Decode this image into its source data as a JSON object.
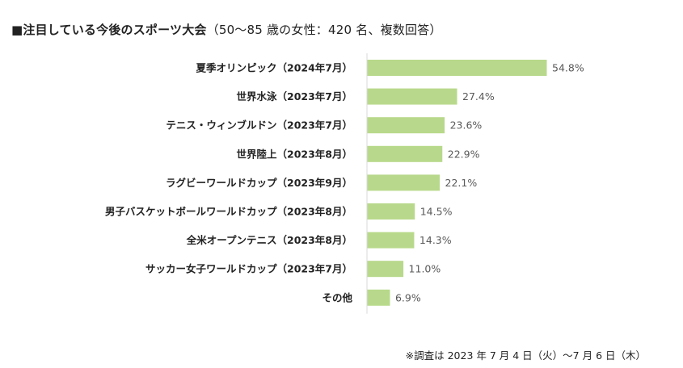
{
  "title": {
    "main": "■注目している今後のスポーツ大会",
    "sub": "（50～85 歳の女性：420 名、複数回答）"
  },
  "footnote": "※調査は 2023 年 7 月 4 日（火）～7 月 6 日（木）",
  "colors": {
    "bar": "#b8d98b",
    "axis": "#d9d9d9",
    "value_text": "#595959"
  },
  "chart_data": {
    "type": "bar",
    "orientation": "horizontal",
    "title": "注目している今後のスポーツ大会",
    "subtitle": "（50～85 歳の女性：420 名、複数回答）",
    "xlabel": "",
    "ylabel": "",
    "unit": "%",
    "xlim": [
      0,
      60
    ],
    "grid": false,
    "legend": "none",
    "categories": [
      "夏季オリンピック（2024年7月）",
      "世界水泳（2023年7月）",
      "テニス・ウィンブルドン（2023年7月）",
      "世界陸上（2023年8月）",
      "ラグビーワールドカップ（2023年9月）",
      "男子バスケットボールワールドカップ（2023年8月）",
      "全米オープンテニス（2023年8月）",
      "サッカー女子ワールドカップ（2023年7月）",
      "その他"
    ],
    "values": [
      54.8,
      27.4,
      23.6,
      22.9,
      22.1,
      14.5,
      14.3,
      11.0,
      6.9
    ],
    "value_labels": [
      "54.8%",
      "27.4%",
      "23.6%",
      "22.9%",
      "22.1%",
      "14.5%",
      "14.3%",
      "11.0%",
      "6.9%"
    ]
  }
}
